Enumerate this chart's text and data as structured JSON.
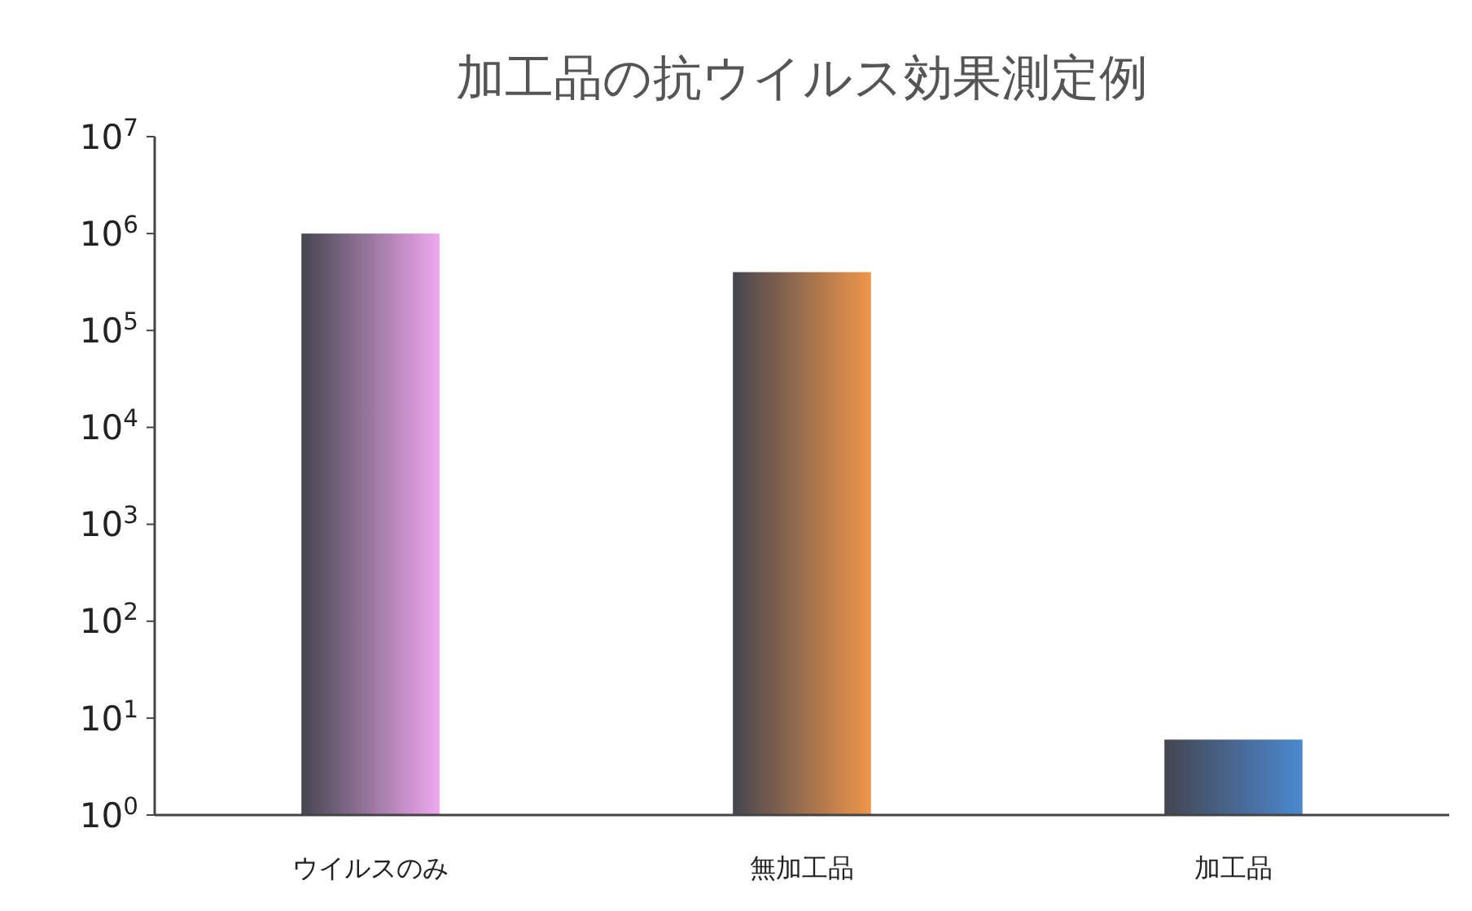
{
  "chart_data": {
    "type": "bar",
    "title": "加工品の抗ウイルス効果測定例",
    "categories": [
      "ウイルスのみ",
      "無加工品",
      "加工品"
    ],
    "values": [
      1000000,
      400000,
      6
    ],
    "colors": [
      "#f0a8f0",
      "#f0964a",
      "#4a88d0"
    ],
    "log": "y",
    "ylim": [
      1,
      10000000
    ],
    "yticks": [
      {
        "value": 1,
        "label": "10$^{0}$"
      },
      {
        "value": 10,
        "label": "10$^{1}$"
      },
      {
        "value": 100,
        "label": "10$^{2}$"
      },
      {
        "value": 1000,
        "label": "10$^{3}$"
      },
      {
        "value": 10000,
        "label": "10$^{4}$"
      },
      {
        "value": 100000,
        "label": "10$^{5}$"
      },
      {
        "value": 1000000,
        "label": "10$^{6}$"
      },
      {
        "value": 10000000,
        "label": "10$^{7}$"
      }
    ],
    "grid": false
  }
}
